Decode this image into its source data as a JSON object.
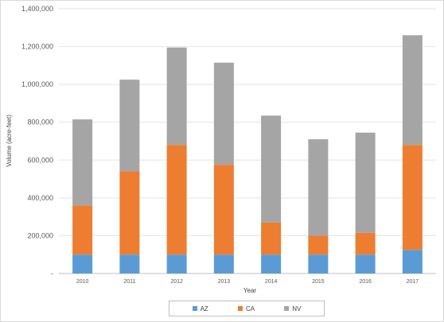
{
  "chart_data": {
    "type": "bar",
    "stacked": true,
    "title": "",
    "xlabel": "Year",
    "ylabel": "Volume (acre-feet)",
    "ylim": [
      0,
      1400000
    ],
    "yticks": [
      0,
      200000,
      400000,
      600000,
      800000,
      1000000,
      1200000,
      1400000
    ],
    "ytick_labels": [
      "-",
      "200,000",
      "400,000",
      "600,000",
      "800,000",
      "1,000,000",
      "1,200,000",
      "1,400,000"
    ],
    "categories": [
      "2010",
      "2011",
      "2012",
      "2013",
      "2014",
      "2015",
      "2016",
      "2017"
    ],
    "series": [
      {
        "name": "AZ",
        "color": "#5b9bd5",
        "values": [
          100000,
          100000,
          100000,
          100000,
          100000,
          100000,
          100000,
          125000
        ]
      },
      {
        "name": "CA",
        "color": "#ed7d31",
        "values": [
          260000,
          440000,
          580000,
          475000,
          170000,
          100000,
          115000,
          555000
        ]
      },
      {
        "name": "NV",
        "color": "#a5a5a5",
        "values": [
          455000,
          485000,
          515000,
          540000,
          565000,
          510000,
          530000,
          580000
        ]
      }
    ],
    "grid": true,
    "legend_position": "bottom"
  }
}
